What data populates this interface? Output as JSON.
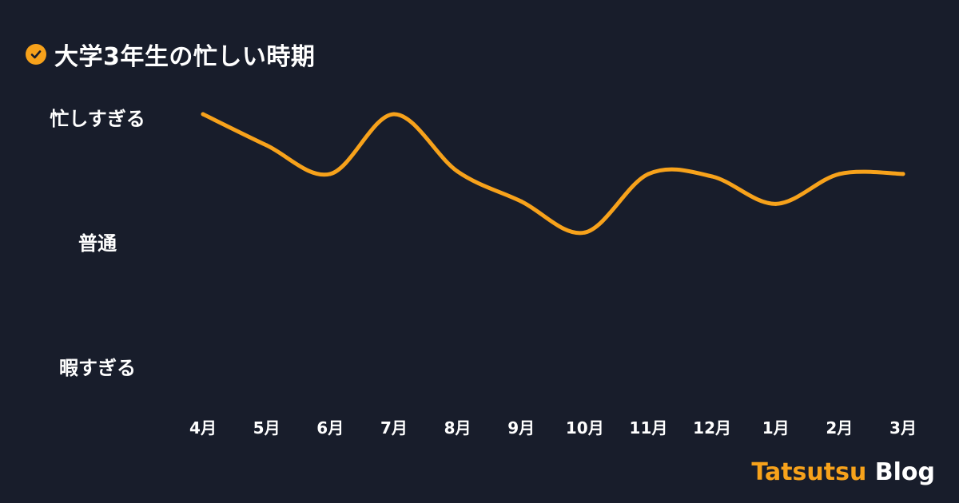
{
  "header": {
    "title": "大学3年生の忙しい時期",
    "icon": "check-circle-icon"
  },
  "colors": {
    "background": "#181d2b",
    "line": "#f7a21b",
    "text": "#ffffff",
    "accent": "#f7a21b"
  },
  "brand": {
    "accent": "Tatsutsu",
    "plain": "Blog"
  },
  "chart_data": {
    "type": "line",
    "title": "大学3年生の忙しい時期",
    "categories": [
      "4月",
      "5月",
      "6月",
      "7月",
      "8月",
      "9月",
      "10月",
      "11月",
      "12月",
      "1月",
      "2月",
      "3月"
    ],
    "y_levels": [
      {
        "label": "忙しすぎる",
        "value": 2
      },
      {
        "label": "普通",
        "value": 1
      },
      {
        "label": "暇すぎる",
        "value": 0
      }
    ],
    "ylim": [
      0,
      2
    ],
    "grid": false,
    "series": [
      {
        "values": [
          2.0,
          1.75,
          1.52,
          2.0,
          1.54,
          1.3,
          1.05,
          1.52,
          1.5,
          1.28,
          1.52,
          1.52
        ]
      }
    ]
  }
}
